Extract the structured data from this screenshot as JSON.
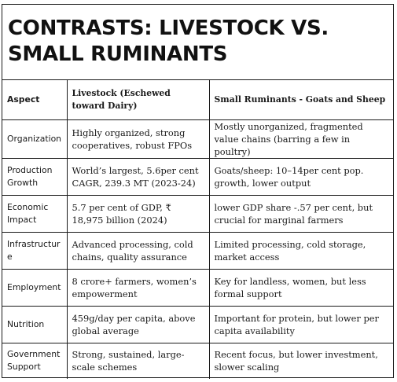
{
  "title": {
    "line1": "CONTRASTS: LIVESTOCK VS.",
    "line2": "SMALL RUMINANTS"
  },
  "table": {
    "headers": [
      "Aspect",
      "Livestock (Eschewed toward Dairy)",
      "Small Ruminants - Goats and Sheep"
    ],
    "rows": [
      [
        "Organization",
        "Highly organized, strong cooperatives, robust FPOs",
        "Mostly unorganized, fragmented value chains (barring a few in poultry)"
      ],
      [
        "Production Growth",
        "World’s largest, 5.6per cent CAGR, 239.3 MT (2023-24)",
        "Goats/sheep: 10–14per cent pop. growth, lower output"
      ],
      [
        "Economic Impact",
        "5.7 per cent of GDP, ₹ 18,975 billion (2024)",
        "lower GDP share -.57 per cent, but crucial for marginal farmers"
      ],
      [
        "Infrastructure",
        "Advanced processing, cold chains, quality assurance",
        "Limited processing, cold storage, market access"
      ],
      [
        "Employment",
        "8 crore+ farmers, women’s empowerment",
        "Key for landless, women, but less formal support"
      ],
      [
        "Nutrition",
        "459g/day per capita, above global average",
        "Important for protein, but lower per capita availability"
      ],
      [
        "Government Support",
        "Strong, sustained, large-scale schemes",
        "Recent focus, but lower investment, slower scaling"
      ]
    ]
  }
}
